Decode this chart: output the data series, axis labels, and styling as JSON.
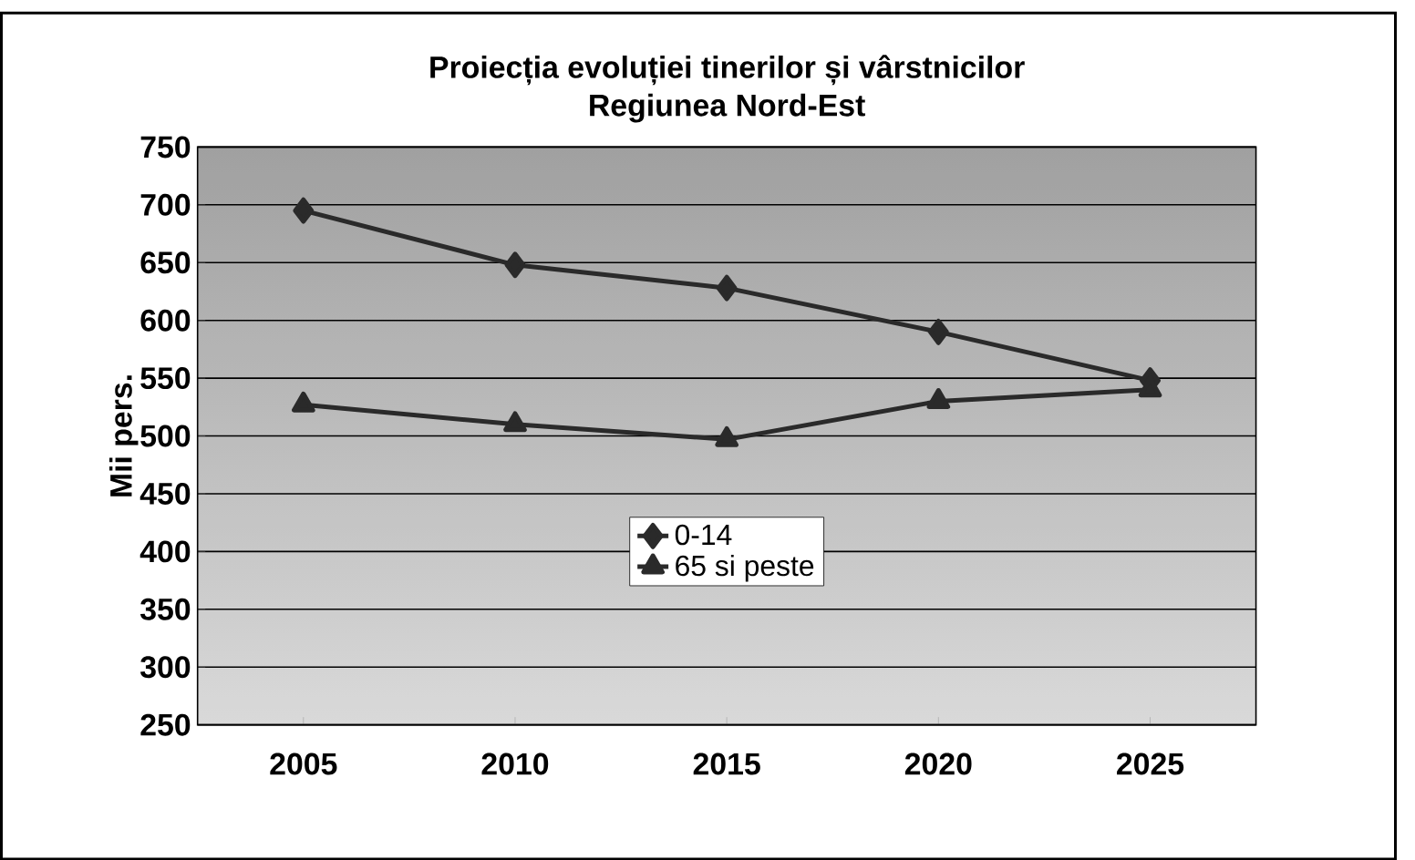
{
  "chart_data": {
    "type": "line",
    "title": "Proiecția evoluției tinerilor și vârstnicilor",
    "subtitle": "Regiunea  Nord-Est",
    "ylabel": "Mii pers.",
    "categories": [
      "2005",
      "2010",
      "2015",
      "2020",
      "2025"
    ],
    "series": [
      {
        "name": "0-14",
        "color": "#2a2a2a",
        "marker": "diamond",
        "values": [
          695,
          648,
          628,
          590,
          548
        ]
      },
      {
        "name": "65 si peste",
        "color": "#2a2a2a",
        "marker": "triangle",
        "values": [
          527,
          510,
          497,
          530,
          540
        ]
      }
    ],
    "ylim": [
      250,
      750
    ],
    "yticks": [
      250,
      300,
      350,
      400,
      450,
      500,
      550,
      600,
      650,
      700,
      750
    ],
    "grid": "y",
    "legend": "center"
  }
}
